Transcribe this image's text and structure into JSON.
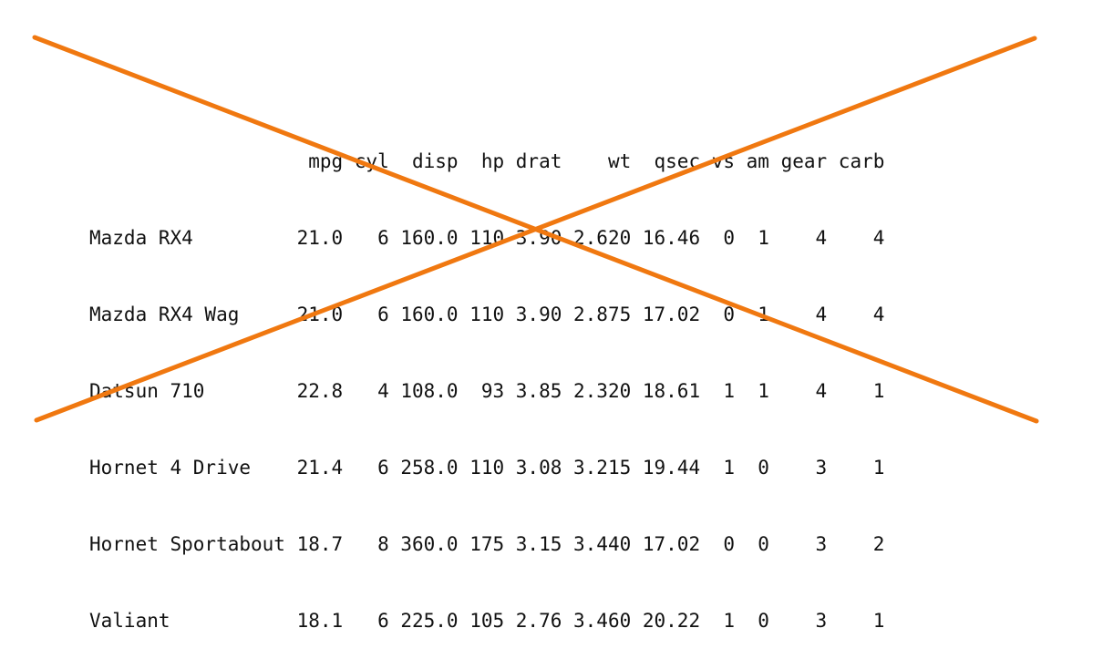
{
  "table": {
    "header": "                   mpg cyl  disp  hp drat    wt  qsec vs am gear carb",
    "rows": [
      "Mazda RX4         21.0   6 160.0 110 3.90 2.620 16.46  0  1    4    4",
      "Mazda RX4 Wag     21.0   6 160.0 110 3.90 2.875 17.02  0  1    4    4",
      "Datsun 710        22.8   4 108.0  93 3.85 2.320 18.61  1  1    4    1",
      "Hornet 4 Drive    21.4   6 258.0 110 3.08 3.215 19.44  1  0    3    1",
      "Hornet Sportabout 18.7   8 360.0 175 3.15 3.440 17.02  0  0    3    2",
      "Valiant           18.1   6 225.0 105 2.76 3.460 20.22  1  0    3    1"
    ]
  },
  "overlay": {
    "icon": "cross-out-icon",
    "color": "#f07810"
  }
}
